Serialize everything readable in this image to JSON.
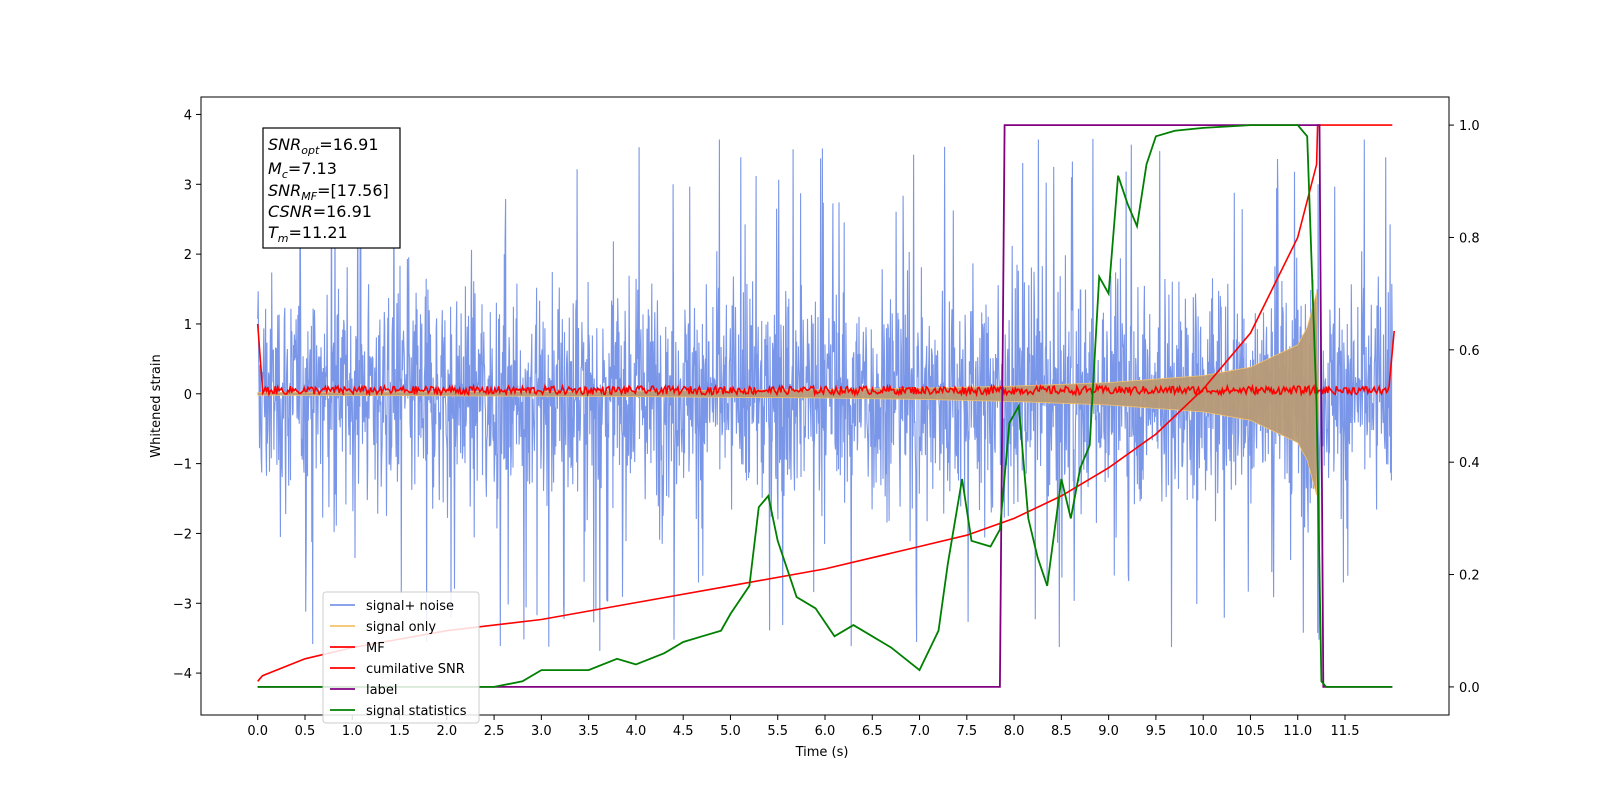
{
  "chart_data": {
    "type": "line",
    "xlabel": "Time (s)",
    "ylabel": "Whitened strain",
    "xlim": [
      -0.6,
      12.6
    ],
    "ylim": [
      -4.6,
      4.25
    ],
    "y2lim": [
      -0.05,
      1.05
    ],
    "x_ticks": [
      "0.0",
      "0.5",
      "1.0",
      "1.5",
      "2.0",
      "2.5",
      "3.0",
      "3.5",
      "4.0",
      "4.5",
      "5.0",
      "5.5",
      "6.0",
      "6.5",
      "7.0",
      "7.5",
      "8.0",
      "8.5",
      "9.0",
      "9.5",
      "10.0",
      "10.5",
      "11.0",
      "11.5"
    ],
    "y_ticks": [
      "4",
      "3",
      "2",
      "1",
      "0",
      "−1",
      "−2",
      "−3",
      "−4"
    ],
    "y2_ticks": [
      "1.0",
      "0.8",
      "0.6",
      "0.4",
      "0.2",
      "0.0"
    ],
    "legend_position": "lower-left",
    "legend": [
      "signal+ noise",
      "signal only",
      "MF",
      "cumilative SNR",
      "label",
      "signal statistics"
    ],
    "series": [
      {
        "name": "signal+ noise",
        "axis": "left",
        "description_values": {
          "x_range": [
            0.0,
            12.0
          ],
          "approx_band": [
            -2.0,
            2.0
          ],
          "max": 3.88,
          "min": -4.2
        }
      },
      {
        "name": "signal only",
        "axis": "left",
        "x": [
          0.0,
          2.0,
          4.0,
          6.0,
          7.0,
          8.0,
          9.0,
          10.0,
          10.5,
          11.0,
          11.1,
          11.2,
          11.22
        ],
        "amplitude": [
          0.02,
          0.03,
          0.04,
          0.06,
          0.08,
          0.11,
          0.16,
          0.26,
          0.38,
          0.7,
          0.95,
          1.45,
          0.0
        ]
      },
      {
        "name": "MF",
        "axis": "left",
        "x": [
          0.0,
          0.02,
          0.05,
          12.0,
          12.02
        ],
        "approx_level": 0.05,
        "noise_amplitude": 0.06,
        "endpoints": [
          1.0,
          0.9
        ]
      },
      {
        "name": "cumilative SNR",
        "axis": "right",
        "x": [
          0.0,
          0.05,
          0.5,
          1.0,
          2.0,
          3.0,
          4.0,
          5.0,
          6.0,
          7.0,
          7.5,
          8.0,
          8.5,
          9.0,
          9.5,
          10.0,
          10.5,
          11.0,
          11.2,
          11.21,
          12.0
        ],
        "values": [
          0.01,
          0.02,
          0.05,
          0.07,
          0.1,
          0.12,
          0.15,
          0.18,
          0.21,
          0.25,
          0.27,
          0.3,
          0.34,
          0.39,
          0.45,
          0.53,
          0.63,
          0.8,
          0.93,
          1.0,
          1.0
        ]
      },
      {
        "name": "label",
        "axis": "right",
        "x": [
          0.0,
          7.85,
          7.9,
          11.23,
          11.27,
          12.0
        ],
        "values": [
          0.0,
          0.0,
          1.0,
          1.0,
          0.0,
          0.0
        ]
      },
      {
        "name": "signal statistics",
        "axis": "right",
        "x": [
          0.0,
          2.5,
          2.8,
          3.0,
          3.2,
          3.5,
          3.8,
          4.0,
          4.3,
          4.5,
          4.7,
          4.9,
          5.0,
          5.2,
          5.3,
          5.4,
          5.5,
          5.7,
          5.9,
          6.1,
          6.3,
          6.5,
          6.7,
          7.0,
          7.2,
          7.3,
          7.45,
          7.55,
          7.75,
          7.85,
          7.95,
          8.05,
          8.15,
          8.25,
          8.35,
          8.5,
          8.6,
          8.7,
          8.8,
          8.9,
          9.0,
          9.1,
          9.2,
          9.3,
          9.4,
          9.5,
          9.7,
          10.0,
          10.5,
          11.0,
          11.1,
          11.2,
          11.25,
          11.3,
          12.0
        ],
        "values": [
          0.0,
          0.0,
          0.01,
          0.03,
          0.03,
          0.03,
          0.05,
          0.04,
          0.06,
          0.08,
          0.09,
          0.1,
          0.13,
          0.18,
          0.32,
          0.34,
          0.26,
          0.16,
          0.14,
          0.09,
          0.11,
          0.09,
          0.07,
          0.03,
          0.1,
          0.22,
          0.37,
          0.26,
          0.25,
          0.28,
          0.47,
          0.5,
          0.3,
          0.23,
          0.18,
          0.37,
          0.3,
          0.39,
          0.43,
          0.73,
          0.7,
          0.91,
          0.86,
          0.82,
          0.93,
          0.98,
          0.99,
          0.995,
          1.0,
          1.0,
          0.98,
          0.5,
          0.01,
          0.0,
          0.0
        ]
      }
    ],
    "colors": {
      "signal_noise": "#7a96e8",
      "signal_only": "#f5c26b",
      "signal_only_fill": "#b89a76",
      "mf": "#ff0000",
      "cumulative_snr": "#ff0000",
      "label": "#800080",
      "signal_statistics": "#008000"
    }
  },
  "info_box": {
    "snr_opt_main": "SNR",
    "snr_opt_sub": "opt",
    "snr_opt_val": "=16.91",
    "mc_main": "M",
    "mc_sub": "c",
    "mc_val": "=7.13",
    "snr_mf_main": "SNR",
    "snr_mf_sub": "MF",
    "snr_mf_val": "=[17.56]",
    "csnr_main": "CSNR",
    "csnr_val": "=16.91",
    "tm_main": "T",
    "tm_sub": "m",
    "tm_val": "=11.21"
  }
}
